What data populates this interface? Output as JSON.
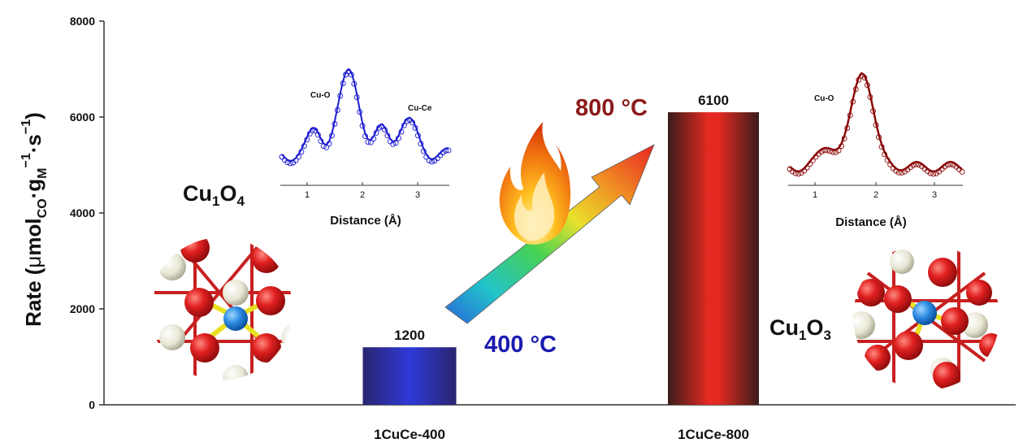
{
  "chart_data": {
    "type": "bar",
    "categories": [
      "1CuCe-400",
      "1CuCe-800"
    ],
    "values": [
      1200,
      6100
    ],
    "value_labels": [
      "1200",
      "6100"
    ],
    "ylabel_main": "Rate (",
    "ylabel_unit_mu": "μ",
    "ylabel_unit_mol": "mol",
    "ylabel_sub_co": "CO",
    "ylabel_dot": "·g",
    "ylabel_sub_m": "M",
    "ylabel_sup1": "−1",
    "ylabel_s": "·s",
    "ylabel_sup2": "−1",
    "ylabel_close": ")",
    "ylim": [
      0,
      8000
    ],
    "yticks": [
      0,
      2000,
      4000,
      6000,
      8000
    ],
    "ytick_labels": [
      "0",
      "2000",
      "4000",
      "6000",
      "8000"
    ],
    "grid": false,
    "colors": {
      "bar_400": "#2b33c8",
      "bar_800": "#d42a20",
      "bar_edge_dark": "#3a1a1a"
    }
  },
  "annotations": {
    "temp_low": "400 °C",
    "temp_high": "800 °C",
    "temp_low_color": "#1a1ab0",
    "temp_high_color": "#8b1a1a",
    "struct_left_base": "Cu",
    "struct_left_sub1": "1",
    "struct_left_o": "O",
    "struct_left_sub2": "4",
    "struct_right_base": "Cu",
    "struct_right_sub1": "1",
    "struct_right_o": "O",
    "struct_right_sub2": "3"
  },
  "inset_left": {
    "xlabel": "Distance (Å)",
    "xticks": [
      "1",
      "2",
      "3"
    ],
    "peak_labels": [
      "Cu-O",
      "Cu-Ce"
    ],
    "color": "#1a1ad0"
  },
  "inset_right": {
    "xlabel": "Distance (Å)",
    "xticks": [
      "1",
      "2",
      "3"
    ],
    "peak_labels": [
      "Cu-O"
    ],
    "color": "#8b0a0a"
  }
}
